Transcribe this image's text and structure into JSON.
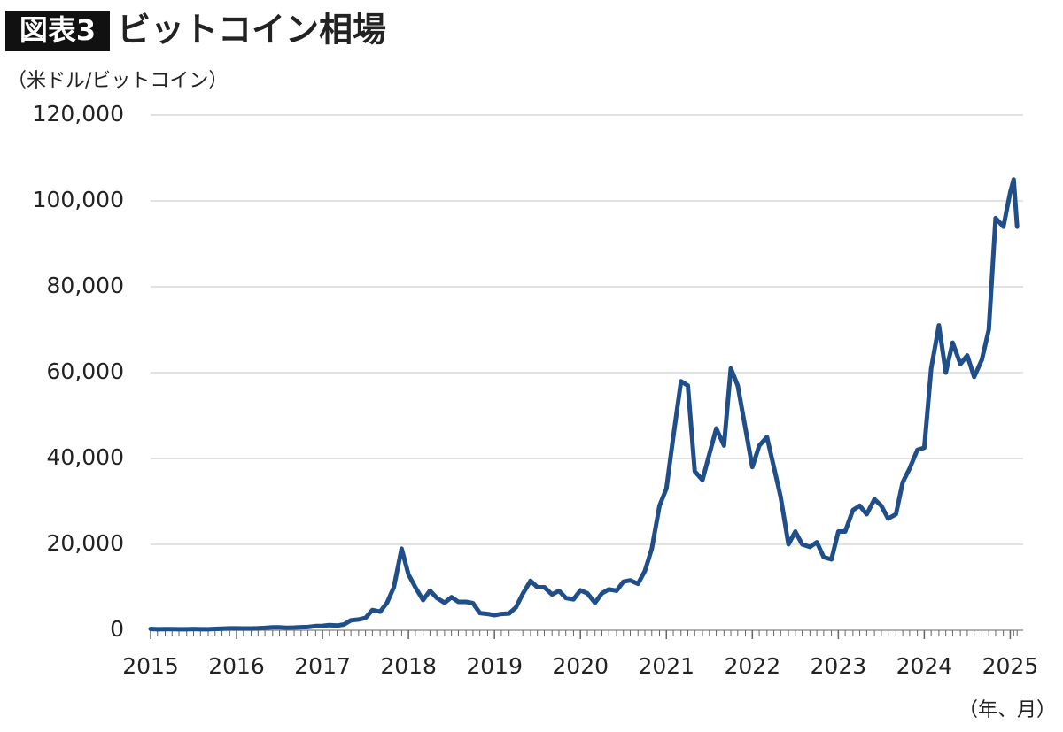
{
  "chart_data": {
    "type": "line",
    "title_badge": "図表3",
    "title": "ビットコイン相場",
    "y_axis_label": "（米ドル/ビットコイン）",
    "x_axis_label": "（年、月）",
    "color": "#1f4e89",
    "grid": true,
    "xlim": [
      2015,
      2025.15
    ],
    "xticks": [
      2015,
      2016,
      2017,
      2018,
      2019,
      2020,
      2021,
      2022,
      2023,
      2024,
      2025
    ],
    "ylim": [
      0,
      120000
    ],
    "yticks": [
      0,
      {
        "value": 20000,
        "label": "20,000"
      },
      {
        "value": 40000,
        "label": "40,000"
      },
      {
        "value": 60000,
        "label": "60,000"
      },
      {
        "value": 80000,
        "label": "80,000"
      },
      {
        "value": 100000,
        "label": "100,000"
      },
      {
        "value": 120000,
        "label": "120,000"
      }
    ],
    "x": [
      2015.0,
      2015.08,
      2015.17,
      2015.25,
      2015.33,
      2015.42,
      2015.5,
      2015.58,
      2015.67,
      2015.75,
      2015.83,
      2015.92,
      2016.0,
      2016.08,
      2016.17,
      2016.25,
      2016.33,
      2016.42,
      2016.5,
      2016.58,
      2016.67,
      2016.75,
      2016.83,
      2016.92,
      2017.0,
      2017.08,
      2017.17,
      2017.25,
      2017.33,
      2017.42,
      2017.5,
      2017.58,
      2017.67,
      2017.75,
      2017.83,
      2017.92,
      2018.0,
      2018.08,
      2018.17,
      2018.25,
      2018.33,
      2018.42,
      2018.5,
      2018.58,
      2018.67,
      2018.75,
      2018.83,
      2018.92,
      2019.0,
      2019.08,
      2019.17,
      2019.25,
      2019.33,
      2019.42,
      2019.5,
      2019.58,
      2019.67,
      2019.75,
      2019.83,
      2019.92,
      2020.0,
      2020.08,
      2020.17,
      2020.25,
      2020.33,
      2020.42,
      2020.5,
      2020.58,
      2020.67,
      2020.75,
      2020.83,
      2020.92,
      2021.0,
      2021.08,
      2021.17,
      2021.25,
      2021.33,
      2021.42,
      2021.5,
      2021.58,
      2021.67,
      2021.75,
      2021.83,
      2021.92,
      2022.0,
      2022.08,
      2022.17,
      2022.25,
      2022.33,
      2022.42,
      2022.5,
      2022.58,
      2022.67,
      2022.75,
      2022.83,
      2022.92,
      2023.0,
      2023.08,
      2023.17,
      2023.25,
      2023.33,
      2023.42,
      2023.5,
      2023.58,
      2023.67,
      2023.75,
      2023.83,
      2023.92,
      2024.0,
      2024.08,
      2024.17,
      2024.25,
      2024.33,
      2024.42,
      2024.5,
      2024.58,
      2024.67,
      2024.75,
      2024.83,
      2024.92,
      2025.0,
      2025.04,
      2025.08
    ],
    "values": [
      315,
      230,
      250,
      240,
      230,
      225,
      285,
      230,
      230,
      310,
      380,
      430,
      430,
      410,
      415,
      450,
      530,
      680,
      650,
      575,
      610,
      700,
      740,
      960,
      1000,
      1190,
      1080,
      1350,
      2300,
      2500,
      2870,
      4700,
      4300,
      6400,
      10000,
      19000,
      13000,
      10000,
      7000,
      9200,
      7500,
      6400,
      7700,
      6600,
      6600,
      6300,
      4000,
      3800,
      3500,
      3800,
      3900,
      5300,
      8500,
      11500,
      10000,
      10000,
      8300,
      9200,
      7500,
      7200,
      9300,
      8600,
      6400,
      8600,
      9500,
      9200,
      11300,
      11600,
      10800,
      13800,
      19000,
      29000,
      33000,
      45000,
      58000,
      57000,
      37000,
      35000,
      41000,
      47000,
      43000,
      61000,
      57000,
      47000,
      38000,
      43000,
      45000,
      38000,
      31000,
      20000,
      23000,
      20000,
      19400,
      20500,
      17000,
      16500,
      23000,
      23000,
      28000,
      29000,
      27000,
      30500,
      29000,
      26000,
      27000,
      34500,
      37700,
      42000,
      42500,
      61000,
      71000,
      60000,
      67000,
      62000,
      64000,
      59000,
      63000,
      70000,
      96000,
      94000,
      102000,
      105000,
      94000
    ]
  }
}
